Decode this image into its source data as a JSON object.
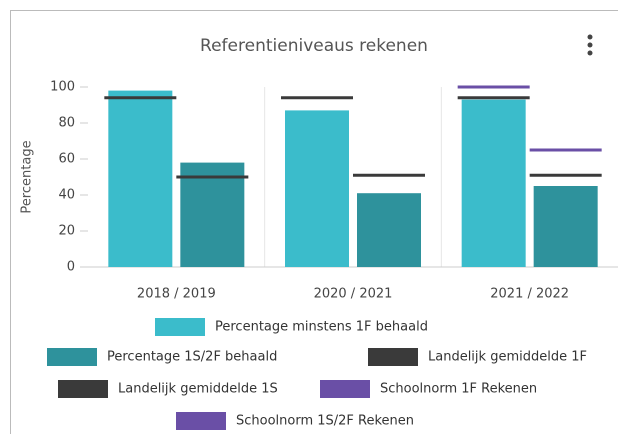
{
  "chart_data": {
    "type": "bar",
    "title": "Referentieniveaus rekenen",
    "y_label": "Percentage",
    "categories": [
      "2018 / 2019",
      "2020 / 2021",
      "2021 / 2022"
    ],
    "series": [
      {
        "name": "Percentage minstens 1F behaald",
        "type": "bar",
        "color": "#3bbccb",
        "values": [
          98,
          87,
          93
        ]
      },
      {
        "name": "Percentage 1S/2F behaald",
        "type": "bar",
        "color": "#2e929c",
        "values": [
          58,
          41,
          45
        ]
      },
      {
        "name": "Landelijk gemiddelde 1F",
        "type": "marker",
        "color": "#3a3a3a",
        "values": [
          94,
          94,
          94
        ]
      },
      {
        "name": "Landelijk gemiddelde 1S",
        "type": "marker",
        "color": "#3a3a3a",
        "values": [
          50,
          51,
          51
        ]
      },
      {
        "name": "Schoolnorm 1F Rekenen",
        "type": "marker",
        "color": "#6a4fa6",
        "values": [
          null,
          null,
          100
        ]
      },
      {
        "name": "Schoolnorm 1S/2F Rekenen",
        "type": "marker",
        "color": "#6a4fa6",
        "values": [
          null,
          null,
          65
        ]
      }
    ],
    "ylim": [
      0,
      100
    ],
    "yticks": [
      0,
      20,
      40,
      60,
      80,
      100
    ],
    "grid": false
  }
}
